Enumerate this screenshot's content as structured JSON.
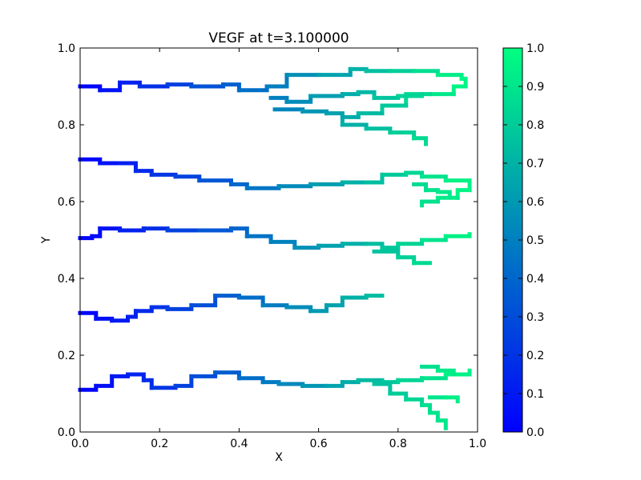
{
  "chart_data": {
    "type": "line",
    "title": "VEGF at t=3.100000",
    "xlabel": "X",
    "ylabel": "Y",
    "xlim": [
      0.0,
      1.0
    ],
    "ylim": [
      0.0,
      1.0
    ],
    "x_ticks": [
      "0.0",
      "0.2",
      "0.4",
      "0.6",
      "0.8",
      "1.0"
    ],
    "y_ticks": [
      "0.0",
      "0.2",
      "0.4",
      "0.6",
      "0.8",
      "1.0"
    ],
    "grid": false,
    "color_map": {
      "low": "#0000ff",
      "high": "#00ff80"
    },
    "colorbar": {
      "range": [
        0.0,
        1.0
      ],
      "ticks": [
        "0.0",
        "0.1",
        "0.2",
        "0.3",
        "0.4",
        "0.5",
        "0.6",
        "0.7",
        "0.8",
        "0.9",
        "1.0"
      ]
    },
    "series": [
      {
        "points": [
          [
            0.0,
            0.9
          ],
          [
            0.05,
            0.89
          ],
          [
            0.1,
            0.91
          ],
          [
            0.15,
            0.9
          ],
          [
            0.22,
            0.905
          ],
          [
            0.28,
            0.9
          ],
          [
            0.36,
            0.905
          ],
          [
            0.4,
            0.89
          ],
          [
            0.47,
            0.9
          ],
          [
            0.52,
            0.93
          ],
          [
            0.6,
            0.93
          ],
          [
            0.68,
            0.945
          ],
          [
            0.72,
            0.94
          ],
          [
            0.78,
            0.94
          ],
          [
            0.84,
            0.94
          ],
          [
            0.9,
            0.93
          ],
          [
            0.96,
            0.92
          ],
          [
            0.97,
            0.9
          ],
          [
            0.94,
            0.88
          ],
          [
            0.88,
            0.88
          ],
          [
            0.82,
            0.85
          ],
          [
            0.76,
            0.83
          ],
          [
            0.7,
            0.82
          ],
          [
            0.66,
            0.8
          ],
          [
            0.72,
            0.79
          ],
          [
            0.78,
            0.78
          ],
          [
            0.84,
            0.765
          ],
          [
            0.87,
            0.75
          ]
        ]
      },
      {
        "points": [
          [
            0.48,
            0.87
          ],
          [
            0.52,
            0.86
          ],
          [
            0.58,
            0.875
          ],
          [
            0.66,
            0.88
          ],
          [
            0.7,
            0.885
          ],
          [
            0.74,
            0.87
          ],
          [
            0.8,
            0.875
          ],
          [
            0.86,
            0.88
          ]
        ]
      },
      {
        "points": [
          [
            0.49,
            0.84
          ],
          [
            0.56,
            0.835
          ],
          [
            0.62,
            0.83
          ],
          [
            0.66,
            0.82
          ]
        ]
      },
      {
        "points": [
          [
            0.0,
            0.71
          ],
          [
            0.05,
            0.7
          ],
          [
            0.1,
            0.7
          ],
          [
            0.14,
            0.68
          ],
          [
            0.18,
            0.67
          ],
          [
            0.24,
            0.665
          ],
          [
            0.3,
            0.655
          ],
          [
            0.38,
            0.645
          ],
          [
            0.42,
            0.635
          ],
          [
            0.5,
            0.64
          ],
          [
            0.58,
            0.645
          ],
          [
            0.66,
            0.65
          ],
          [
            0.72,
            0.65
          ],
          [
            0.76,
            0.67
          ],
          [
            0.82,
            0.675
          ],
          [
            0.86,
            0.665
          ],
          [
            0.92,
            0.655
          ],
          [
            0.98,
            0.63
          ],
          [
            0.95,
            0.61
          ],
          [
            0.9,
            0.6
          ],
          [
            0.86,
            0.59
          ]
        ]
      },
      {
        "points": [
          [
            0.84,
            0.645
          ],
          [
            0.87,
            0.63
          ],
          [
            0.9,
            0.625
          ],
          [
            0.93,
            0.62
          ]
        ]
      },
      {
        "points": [
          [
            0.0,
            0.505
          ],
          [
            0.03,
            0.51
          ],
          [
            0.05,
            0.53
          ],
          [
            0.1,
            0.525
          ],
          [
            0.16,
            0.53
          ],
          [
            0.22,
            0.525
          ],
          [
            0.3,
            0.525
          ],
          [
            0.38,
            0.53
          ],
          [
            0.42,
            0.51
          ],
          [
            0.48,
            0.495
          ],
          [
            0.54,
            0.48
          ],
          [
            0.6,
            0.485
          ],
          [
            0.66,
            0.49
          ],
          [
            0.72,
            0.49
          ],
          [
            0.76,
            0.48
          ],
          [
            0.8,
            0.49
          ],
          [
            0.86,
            0.5
          ],
          [
            0.92,
            0.51
          ],
          [
            0.98,
            0.515
          ]
        ]
      },
      {
        "points": [
          [
            0.74,
            0.47
          ],
          [
            0.8,
            0.455
          ],
          [
            0.84,
            0.44
          ],
          [
            0.88,
            0.44
          ]
        ]
      },
      {
        "points": [
          [
            0.0,
            0.31
          ],
          [
            0.04,
            0.295
          ],
          [
            0.08,
            0.29
          ],
          [
            0.12,
            0.3
          ],
          [
            0.14,
            0.315
          ],
          [
            0.18,
            0.325
          ],
          [
            0.22,
            0.32
          ],
          [
            0.28,
            0.33
          ],
          [
            0.34,
            0.355
          ],
          [
            0.4,
            0.35
          ],
          [
            0.46,
            0.33
          ],
          [
            0.52,
            0.325
          ],
          [
            0.58,
            0.315
          ],
          [
            0.62,
            0.33
          ],
          [
            0.66,
            0.35
          ],
          [
            0.72,
            0.355
          ],
          [
            0.76,
            0.355
          ]
        ]
      },
      {
        "points": [
          [
            0.0,
            0.11
          ],
          [
            0.04,
            0.12
          ],
          [
            0.08,
            0.145
          ],
          [
            0.12,
            0.15
          ],
          [
            0.16,
            0.135
          ],
          [
            0.18,
            0.115
          ],
          [
            0.24,
            0.12
          ],
          [
            0.28,
            0.145
          ],
          [
            0.34,
            0.155
          ],
          [
            0.4,
            0.14
          ],
          [
            0.46,
            0.13
          ],
          [
            0.5,
            0.125
          ],
          [
            0.56,
            0.12
          ],
          [
            0.62,
            0.12
          ],
          [
            0.66,
            0.13
          ],
          [
            0.7,
            0.135
          ],
          [
            0.76,
            0.13
          ],
          [
            0.8,
            0.135
          ],
          [
            0.86,
            0.14
          ],
          [
            0.92,
            0.15
          ],
          [
            0.98,
            0.16
          ]
        ]
      },
      {
        "points": [
          [
            0.74,
            0.125
          ],
          [
            0.78,
            0.1
          ],
          [
            0.82,
            0.085
          ],
          [
            0.86,
            0.07
          ],
          [
            0.88,
            0.05
          ],
          [
            0.9,
            0.03
          ],
          [
            0.92,
            0.01
          ]
        ]
      },
      {
        "points": [
          [
            0.88,
            0.09
          ],
          [
            0.92,
            0.09
          ],
          [
            0.95,
            0.08
          ]
        ]
      },
      {
        "points": [
          [
            0.86,
            0.17
          ],
          [
            0.9,
            0.16
          ],
          [
            0.94,
            0.15
          ]
        ]
      }
    ]
  }
}
